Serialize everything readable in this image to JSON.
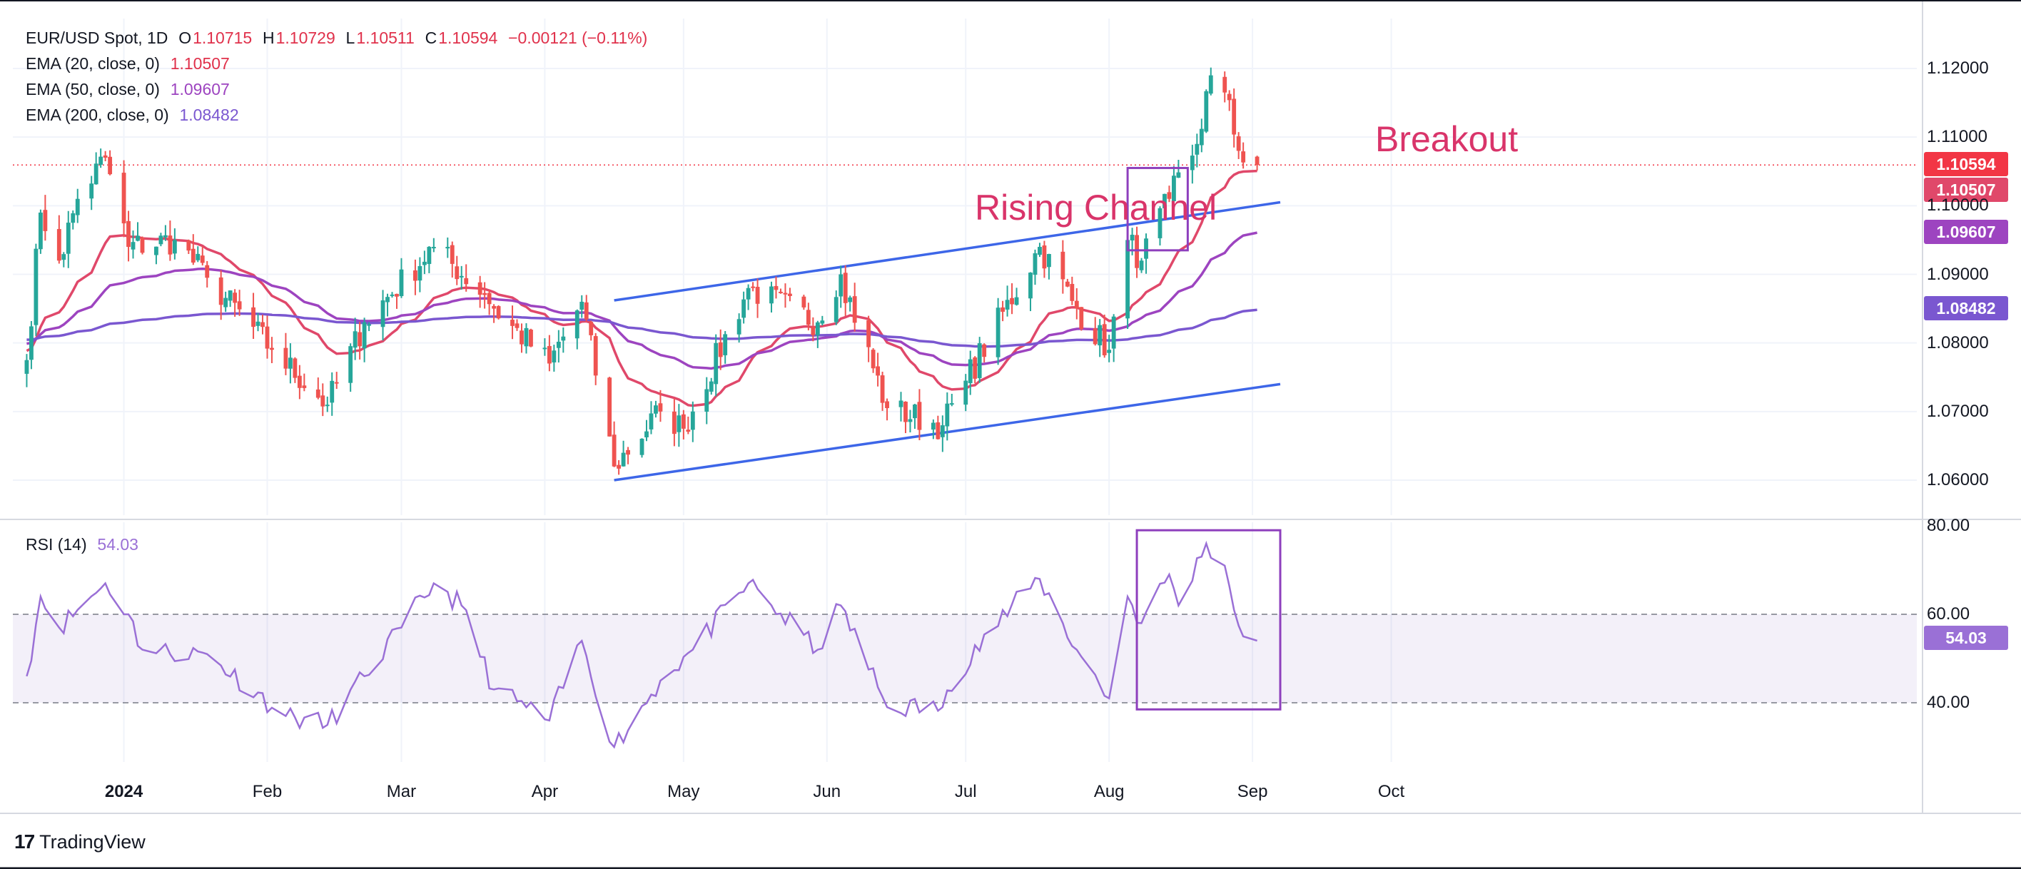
{
  "header": {
    "symbol": "EUR/USD Spot, 1D",
    "open_label": "O",
    "open": "1.10715",
    "high_label": "H",
    "high": "1.10729",
    "low_label": "L",
    "low": "1.10511",
    "close_label": "C",
    "close": "1.10594",
    "change": "−0.00121 (−0.11%)"
  },
  "indicators": [
    {
      "label": "EMA (20, close, 0)",
      "value": "1.10507",
      "color": "#e0486a"
    },
    {
      "label": "EMA (50, close, 0)",
      "value": "1.09607",
      "color": "#9d44c0"
    },
    {
      "label": "EMA (200, close, 0)",
      "value": "1.08482",
      "color": "#7a57d0"
    }
  ],
  "rsi": {
    "label": "RSI (14)",
    "value": "54.03",
    "color": "#9a70d6"
  },
  "price_tags": {
    "last": {
      "value": "1.10594",
      "color": "#f23645"
    },
    "ema20": {
      "value": "1.10507",
      "color": "#e0486a"
    },
    "ema50": {
      "value": "1.09607",
      "color": "#9d44c0"
    },
    "ema200": {
      "value": "1.08482",
      "color": "#7a57d0"
    }
  },
  "rsi_tag": {
    "value": "54.03",
    "color": "#9a70d6"
  },
  "annotations": {
    "channel": "Rising Channel",
    "breakout": "Breakout"
  },
  "logo_text": "TradingView",
  "colors": {
    "up": "#26a69a",
    "down": "#ef5350",
    "channel": "#3d66e8",
    "box": "#8e3fbd"
  },
  "chart_data": [
    {
      "type": "candlestick",
      "title": "EUR/USD Spot, 1D",
      "y_ticks": [
        "1.12000",
        "1.11000",
        "1.10000",
        "1.09000",
        "1.08000",
        "1.07000",
        "1.06000"
      ],
      "ylim": [
        1.0565,
        1.1215
      ],
      "x_ticks": [
        "2024",
        "Feb",
        "Mar",
        "Apr",
        "May",
        "Jun",
        "Jul",
        "Aug",
        "Sep",
        "Oct"
      ],
      "close_anchors": [
        {
          "date": "2023-12-11",
          "close": 1.0775
        },
        {
          "date": "2023-12-14",
          "close": 1.099
        },
        {
          "date": "2023-12-18",
          "close": 1.092
        },
        {
          "date": "2023-12-22",
          "close": 1.101
        },
        {
          "date": "2023-12-28",
          "close": 1.107
        },
        {
          "date": "2024-01-02",
          "close": 1.094
        },
        {
          "date": "2024-01-12",
          "close": 1.095
        },
        {
          "date": "2024-01-19",
          "close": 1.0895
        },
        {
          "date": "2024-02-02",
          "close": 1.079
        },
        {
          "date": "2024-02-14",
          "close": 1.071
        },
        {
          "date": "2024-02-22",
          "close": 1.083
        },
        {
          "date": "2024-03-08",
          "close": 1.094
        },
        {
          "date": "2024-03-19",
          "close": 1.087
        },
        {
          "date": "2024-03-21",
          "close": 1.085
        },
        {
          "date": "2024-04-02",
          "close": 1.077
        },
        {
          "date": "2024-04-09",
          "close": 1.086
        },
        {
          "date": "2024-04-16",
          "close": 1.062
        },
        {
          "date": "2024-04-26",
          "close": 1.07
        },
        {
          "date": "2024-05-01",
          "close": 1.0675
        },
        {
          "date": "2024-05-15",
          "close": 1.088
        },
        {
          "date": "2024-05-30",
          "close": 1.083
        },
        {
          "date": "2024-06-04",
          "close": 1.09
        },
        {
          "date": "2024-06-14",
          "close": 1.0705
        },
        {
          "date": "2024-06-26",
          "close": 1.068
        },
        {
          "date": "2024-07-01",
          "close": 1.0745
        },
        {
          "date": "2024-07-17",
          "close": 1.094
        },
        {
          "date": "2024-07-25",
          "close": 1.085
        },
        {
          "date": "2024-08-01",
          "close": 1.079
        },
        {
          "date": "2024-08-05",
          "close": 1.095
        },
        {
          "date": "2024-08-08",
          "close": 1.092
        },
        {
          "date": "2024-08-14",
          "close": 1.101
        },
        {
          "date": "2024-08-20",
          "close": 1.109
        },
        {
          "date": "2024-08-23",
          "close": 1.119
        },
        {
          "date": "2024-08-26",
          "close": 1.1165
        },
        {
          "date": "2024-08-29",
          "close": 1.108
        },
        {
          "date": "2024-09-02",
          "close": 1.106
        }
      ],
      "last": {
        "open": 1.10715,
        "high": 1.10729,
        "low": 1.10511,
        "close": 1.10594
      },
      "series": [
        {
          "name": "EMA (20, close, 0)",
          "last": 1.10507
        },
        {
          "name": "EMA (50, close, 0)",
          "last": 1.09607
        },
        {
          "name": "EMA (200, close, 0)",
          "last": 1.08482
        }
      ],
      "channel": {
        "upper": [
          {
            "date": "2024-04-16",
            "y": 1.0862
          },
          {
            "date": "2024-09-07",
            "y": 1.1005
          }
        ],
        "lower": [
          {
            "date": "2024-04-16",
            "y": 1.06
          },
          {
            "date": "2024-09-07",
            "y": 1.074
          }
        ]
      },
      "breakout_box": {
        "from": "2024-08-05",
        "to": "2024-08-18",
        "y": [
          1.0935,
          1.1055
        ]
      }
    },
    {
      "type": "line",
      "title": "RSI (14)",
      "y_ticks": [
        "80.00",
        "60.00",
        "40.00"
      ],
      "ylim": [
        28,
        80
      ],
      "band": [
        40,
        60
      ],
      "rsi_anchors": [
        {
          "date": "2023-12-11",
          "y": 46
        },
        {
          "date": "2023-12-14",
          "y": 64
        },
        {
          "date": "2023-12-18",
          "y": 57
        },
        {
          "date": "2023-12-22",
          "y": 61
        },
        {
          "date": "2023-12-28",
          "y": 67
        },
        {
          "date": "2024-01-02",
          "y": 60
        },
        {
          "date": "2024-01-05",
          "y": 52
        },
        {
          "date": "2024-01-19",
          "y": 51
        },
        {
          "date": "2024-02-05",
          "y": 37
        },
        {
          "date": "2024-02-14",
          "y": 35
        },
        {
          "date": "2024-02-22",
          "y": 46
        },
        {
          "date": "2024-03-01",
          "y": 57
        },
        {
          "date": "2024-03-08",
          "y": 67
        },
        {
          "date": "2024-03-14",
          "y": 62
        },
        {
          "date": "2024-03-21",
          "y": 43
        },
        {
          "date": "2024-04-02",
          "y": 36
        },
        {
          "date": "2024-04-09",
          "y": 54
        },
        {
          "date": "2024-04-16",
          "y": 30
        },
        {
          "date": "2024-04-26",
          "y": 45
        },
        {
          "date": "2024-05-03",
          "y": 52
        },
        {
          "date": "2024-05-15",
          "y": 67
        },
        {
          "date": "2024-05-30",
          "y": 52
        },
        {
          "date": "2024-06-04",
          "y": 62
        },
        {
          "date": "2024-06-14",
          "y": 39
        },
        {
          "date": "2024-06-26",
          "y": 39
        },
        {
          "date": "2024-07-03",
          "y": 53
        },
        {
          "date": "2024-07-17",
          "y": 68
        },
        {
          "date": "2024-07-25",
          "y": 52
        },
        {
          "date": "2024-08-01",
          "y": 41
        },
        {
          "date": "2024-08-05",
          "y": 64
        },
        {
          "date": "2024-08-08",
          "y": 58
        },
        {
          "date": "2024-08-14",
          "y": 69
        },
        {
          "date": "2024-08-16",
          "y": 62
        },
        {
          "date": "2024-08-22",
          "y": 76
        },
        {
          "date": "2024-08-26",
          "y": 71
        },
        {
          "date": "2024-08-28",
          "y": 61
        },
        {
          "date": "2024-08-30",
          "y": 55
        },
        {
          "date": "2024-09-02",
          "y": 54.03
        }
      ],
      "highlight_box": {
        "from": "2024-08-07",
        "to": "2024-09-07",
        "y": [
          38.5,
          79
        ]
      }
    }
  ]
}
